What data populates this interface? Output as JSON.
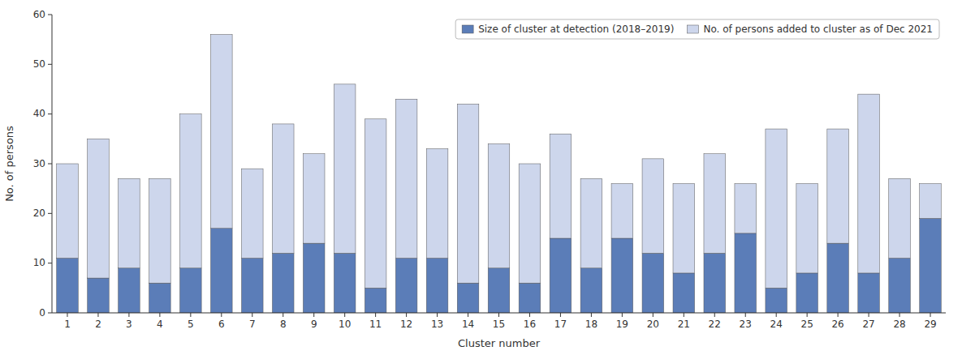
{
  "chart_data": {
    "type": "bar",
    "stacked": true,
    "categories": [
      "1",
      "2",
      "3",
      "4",
      "5",
      "6",
      "7",
      "8",
      "9",
      "10",
      "11",
      "12",
      "13",
      "14",
      "15",
      "16",
      "17",
      "18",
      "19",
      "20",
      "21",
      "22",
      "23",
      "24",
      "25",
      "26",
      "27",
      "28",
      "29"
    ],
    "series": [
      {
        "name": "Size of cluster at detection (2018–2019)",
        "color": "#5b7db8",
        "values": [
          11,
          7,
          9,
          6,
          9,
          17,
          11,
          12,
          14,
          12,
          5,
          11,
          11,
          6,
          9,
          6,
          15,
          9,
          15,
          12,
          8,
          12,
          16,
          5,
          8,
          14,
          8,
          11,
          19
        ]
      },
      {
        "name": "No. of persons added to cluster as of Dec 2021",
        "color": "#cdd6ec",
        "values": [
          19,
          28,
          18,
          21,
          31,
          39,
          18,
          26,
          18,
          34,
          34,
          32,
          22,
          36,
          25,
          24,
          21,
          18,
          11,
          19,
          18,
          20,
          10,
          32,
          18,
          23,
          36,
          16,
          7
        ]
      }
    ],
    "xlabel": "Cluster number",
    "ylabel": "No. of persons",
    "ylim": [
      0,
      60
    ],
    "yticks": [
      0,
      10,
      20,
      30,
      40,
      50,
      60
    ],
    "grid": false,
    "legend": "upper right"
  }
}
